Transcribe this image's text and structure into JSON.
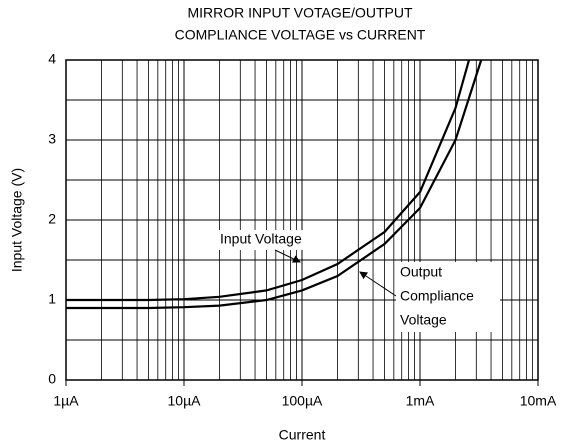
{
  "chart_data": {
    "type": "line",
    "title": [
      "MIRROR INPUT VOTAGE/OUTPUT",
      "COMPLIANCE VOLTAGE vs CURRENT"
    ],
    "xlabel": "Current",
    "ylabel": "Input Voltage (V)",
    "xscale": "log",
    "xlim": [
      1e-06,
      0.01
    ],
    "xticks": [
      {
        "value": 1e-06,
        "label": "1µA"
      },
      {
        "value": 1e-05,
        "label": "10µA"
      },
      {
        "value": 0.0001,
        "label": "100µA"
      },
      {
        "value": 0.001,
        "label": "1mA"
      },
      {
        "value": 0.01,
        "label": "10mA"
      }
    ],
    "ylim": [
      0,
      4
    ],
    "yticks": [
      0,
      1,
      2,
      3,
      4
    ],
    "grid": true,
    "series": [
      {
        "name": "Input Voltage",
        "color": "#000000",
        "x": [
          1e-06,
          2e-06,
          5e-06,
          1e-05,
          2e-05,
          5e-05,
          0.0001,
          0.0002,
          0.0005,
          0.001,
          0.002,
          0.0026
        ],
        "values": [
          1.0,
          1.0,
          1.0,
          1.01,
          1.04,
          1.12,
          1.25,
          1.45,
          1.85,
          2.35,
          3.4,
          4.0
        ]
      },
      {
        "name": "Output Compliance Voltage",
        "color": "#000000",
        "x": [
          1e-06,
          2e-06,
          5e-06,
          1e-05,
          2e-05,
          5e-05,
          0.0001,
          0.0002,
          0.0005,
          0.001,
          0.002,
          0.0033
        ],
        "values": [
          0.9,
          0.9,
          0.9,
          0.91,
          0.93,
          1.0,
          1.12,
          1.3,
          1.7,
          2.15,
          3.0,
          4.0
        ]
      }
    ],
    "annotations": [
      {
        "text": "Input Voltage"
      },
      {
        "lines": [
          "Output",
          "Compliance",
          "Voltage"
        ]
      }
    ]
  }
}
